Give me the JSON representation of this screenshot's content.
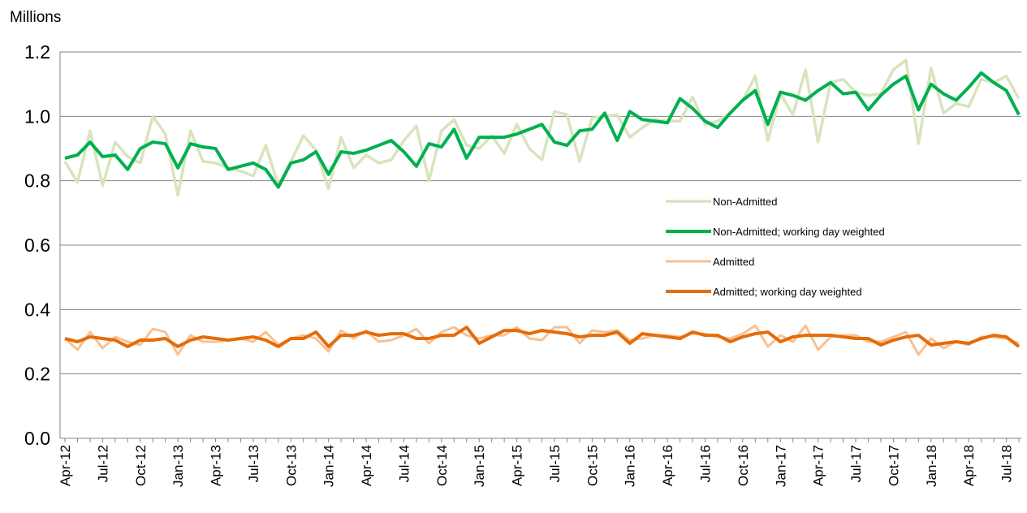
{
  "chart_data": {
    "type": "line",
    "y_label": "Millions",
    "categories": [
      "Apr-12",
      null,
      null,
      "Jul-12",
      null,
      null,
      "Oct-12",
      null,
      null,
      "Jan-13",
      null,
      null,
      "Apr-13",
      null,
      null,
      "Jul-13",
      null,
      null,
      "Oct-13",
      null,
      null,
      "Jan-14",
      null,
      null,
      "Apr-14",
      null,
      null,
      "Jul-14",
      null,
      null,
      "Oct-14",
      null,
      null,
      "Jan-15",
      null,
      null,
      "Apr-15",
      null,
      null,
      "Jul-15",
      null,
      null,
      "Oct-15",
      null,
      null,
      "Jan-16",
      null,
      null,
      "Apr-16",
      null,
      null,
      "Jul-16",
      null,
      null,
      "Oct-16",
      null,
      null,
      "Jan-17",
      null,
      null,
      "Apr-17",
      null,
      null,
      "Jul-17",
      null,
      null,
      "Oct-17",
      null,
      null,
      "Jan-18",
      null,
      null,
      "Apr-18",
      null,
      null,
      "Jul-18",
      null
    ],
    "series": [
      {
        "name": "Non-Admitted",
        "color": "#d7e4bd",
        "width": 3.5,
        "values": [
          0.86,
          0.795,
          0.955,
          0.785,
          0.92,
          0.875,
          0.855,
          1.0,
          0.945,
          0.755,
          0.955,
          0.86,
          0.855,
          0.84,
          0.83,
          0.815,
          0.91,
          0.785,
          0.86,
          0.94,
          0.895,
          0.775,
          0.935,
          0.84,
          0.88,
          0.855,
          0.865,
          0.925,
          0.97,
          0.8,
          0.955,
          0.99,
          0.91,
          0.9,
          0.94,
          0.885,
          0.975,
          0.9,
          0.865,
          1.015,
          1.005,
          0.86,
          0.995,
          1.0,
          1.005,
          0.935,
          0.965,
          0.99,
          0.985,
          0.985,
          1.06,
          0.975,
          0.985,
          1.01,
          1.05,
          1.125,
          0.925,
          1.07,
          1.005,
          1.145,
          0.92,
          1.105,
          1.115,
          1.075,
          1.065,
          1.07,
          1.145,
          1.175,
          0.915,
          1.15,
          1.01,
          1.04,
          1.03,
          1.115,
          1.105,
          1.125,
          1.055
        ]
      },
      {
        "name": "Non-Admitted; working day weighted",
        "color": "#00b050",
        "width": 4,
        "values": [
          0.87,
          0.88,
          0.92,
          0.875,
          0.88,
          0.835,
          0.9,
          0.92,
          0.915,
          0.84,
          0.915,
          0.905,
          0.9,
          0.835,
          0.845,
          0.855,
          0.835,
          0.78,
          0.855,
          0.865,
          0.89,
          0.82,
          0.89,
          0.885,
          0.895,
          0.91,
          0.925,
          0.89,
          0.845,
          0.915,
          0.905,
          0.96,
          0.87,
          0.935,
          0.935,
          0.935,
          0.945,
          0.96,
          0.975,
          0.92,
          0.91,
          0.955,
          0.96,
          1.01,
          0.925,
          1.015,
          0.99,
          0.985,
          0.98,
          1.055,
          1.025,
          0.985,
          0.965,
          1.01,
          1.05,
          1.08,
          0.975,
          1.075,
          1.065,
          1.05,
          1.08,
          1.105,
          1.07,
          1.075,
          1.02,
          1.065,
          1.1,
          1.125,
          1.02,
          1.1,
          1.07,
          1.05,
          1.09,
          1.135,
          1.105,
          1.08,
          1.005
        ]
      },
      {
        "name": "Admitted",
        "color": "#fac090",
        "width": 3,
        "values": [
          0.31,
          0.275,
          0.33,
          0.28,
          0.315,
          0.3,
          0.29,
          0.34,
          0.33,
          0.26,
          0.32,
          0.3,
          0.3,
          0.305,
          0.31,
          0.3,
          0.33,
          0.29,
          0.31,
          0.32,
          0.31,
          0.27,
          0.335,
          0.31,
          0.335,
          0.3,
          0.305,
          0.32,
          0.34,
          0.295,
          0.33,
          0.345,
          0.32,
          0.31,
          0.32,
          0.32,
          0.345,
          0.31,
          0.305,
          0.345,
          0.345,
          0.295,
          0.335,
          0.33,
          0.335,
          0.305,
          0.31,
          0.32,
          0.32,
          0.315,
          0.325,
          0.325,
          0.315,
          0.31,
          0.325,
          0.35,
          0.285,
          0.32,
          0.3,
          0.35,
          0.275,
          0.315,
          0.32,
          0.32,
          0.3,
          0.3,
          0.315,
          0.33,
          0.26,
          0.31,
          0.28,
          0.3,
          0.29,
          0.315,
          0.315,
          0.31,
          0.295
        ]
      },
      {
        "name": "Admitted; working day weighted",
        "color": "#e46c0a",
        "width": 4,
        "values": [
          0.31,
          0.3,
          0.315,
          0.31,
          0.305,
          0.285,
          0.305,
          0.305,
          0.31,
          0.285,
          0.305,
          0.315,
          0.31,
          0.305,
          0.31,
          0.315,
          0.305,
          0.285,
          0.31,
          0.31,
          0.33,
          0.285,
          0.32,
          0.32,
          0.33,
          0.32,
          0.325,
          0.325,
          0.31,
          0.31,
          0.32,
          0.32,
          0.345,
          0.295,
          0.315,
          0.335,
          0.335,
          0.325,
          0.335,
          0.33,
          0.325,
          0.315,
          0.32,
          0.32,
          0.33,
          0.295,
          0.325,
          0.32,
          0.315,
          0.31,
          0.33,
          0.32,
          0.32,
          0.3,
          0.315,
          0.325,
          0.33,
          0.3,
          0.315,
          0.32,
          0.32,
          0.32,
          0.315,
          0.31,
          0.31,
          0.29,
          0.305,
          0.315,
          0.32,
          0.29,
          0.295,
          0.3,
          0.295,
          0.31,
          0.32,
          0.315,
          0.285
        ]
      }
    ],
    "ylim": [
      0,
      1.2
    ],
    "yticks": [
      {
        "value": 0,
        "label": "0.0"
      },
      0.2,
      0.4,
      0.6,
      0.8,
      {
        "value": 1,
        "label": "1.0"
      },
      1.2
    ],
    "grid": true,
    "legend": "inside"
  }
}
